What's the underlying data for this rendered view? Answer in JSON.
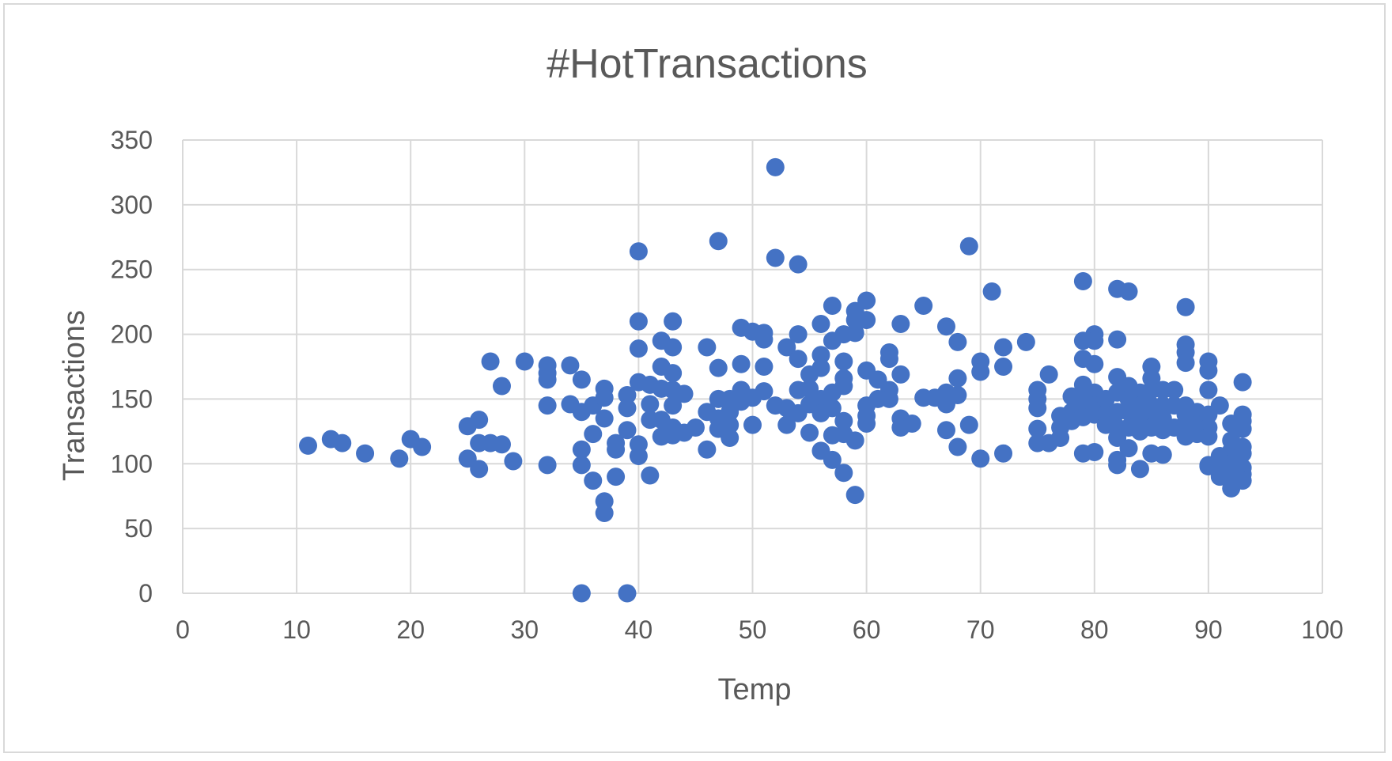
{
  "chart_data": {
    "type": "scatter",
    "title": "#HotTransactions",
    "xlabel": "Temp",
    "ylabel": "Transactions",
    "xlim": [
      0,
      100
    ],
    "ylim": [
      0,
      350
    ],
    "xticks": [
      0,
      10,
      20,
      30,
      40,
      50,
      60,
      70,
      80,
      90,
      100
    ],
    "yticks": [
      0,
      50,
      100,
      150,
      200,
      250,
      300,
      350
    ],
    "grid": true,
    "color": "#4472C4",
    "points": [
      [
        11,
        114
      ],
      [
        13,
        119
      ],
      [
        14,
        116
      ],
      [
        16,
        108
      ],
      [
        19,
        104
      ],
      [
        20,
        119
      ],
      [
        21,
        113
      ],
      [
        25,
        104
      ],
      [
        25,
        129
      ],
      [
        26,
        96
      ],
      [
        26,
        116
      ],
      [
        26,
        134
      ],
      [
        27,
        179
      ],
      [
        27,
        116
      ],
      [
        28,
        115
      ],
      [
        28,
        160
      ],
      [
        29,
        102
      ],
      [
        30,
        179
      ],
      [
        32,
        176
      ],
      [
        32,
        170
      ],
      [
        32,
        165
      ],
      [
        32,
        145
      ],
      [
        32,
        99
      ],
      [
        34,
        176
      ],
      [
        34,
        146
      ],
      [
        35,
        165
      ],
      [
        35,
        140
      ],
      [
        35,
        111
      ],
      [
        35,
        99
      ],
      [
        35,
        0
      ],
      [
        36,
        145
      ],
      [
        36,
        123
      ],
      [
        36,
        87
      ],
      [
        37,
        158
      ],
      [
        37,
        151
      ],
      [
        37,
        135
      ],
      [
        37,
        71
      ],
      [
        37,
        62
      ],
      [
        38,
        116
      ],
      [
        38,
        111
      ],
      [
        38,
        90
      ],
      [
        39,
        153
      ],
      [
        39,
        143
      ],
      [
        39,
        126
      ],
      [
        39,
        0
      ],
      [
        40,
        264
      ],
      [
        40,
        210
      ],
      [
        40,
        189
      ],
      [
        40,
        163
      ],
      [
        40,
        115
      ],
      [
        40,
        106
      ],
      [
        41,
        161
      ],
      [
        41,
        146
      ],
      [
        41,
        134
      ],
      [
        41,
        91
      ],
      [
        42,
        195
      ],
      [
        42,
        175
      ],
      [
        42,
        158
      ],
      [
        42,
        134
      ],
      [
        42,
        121
      ],
      [
        43,
        210
      ],
      [
        43,
        190
      ],
      [
        43,
        170
      ],
      [
        43,
        157
      ],
      [
        43,
        145
      ],
      [
        43,
        128
      ],
      [
        43,
        122
      ],
      [
        44,
        154
      ],
      [
        44,
        124
      ],
      [
        45,
        128
      ],
      [
        46,
        190
      ],
      [
        46,
        140
      ],
      [
        46,
        111
      ],
      [
        47,
        272
      ],
      [
        47,
        174
      ],
      [
        47,
        150
      ],
      [
        47,
        135
      ],
      [
        47,
        127
      ],
      [
        48,
        150
      ],
      [
        48,
        140
      ],
      [
        48,
        130
      ],
      [
        48,
        120
      ],
      [
        49,
        205
      ],
      [
        49,
        177
      ],
      [
        49,
        157
      ],
      [
        49,
        148
      ],
      [
        50,
        202
      ],
      [
        50,
        151
      ],
      [
        50,
        130
      ],
      [
        51,
        201
      ],
      [
        51,
        196
      ],
      [
        51,
        175
      ],
      [
        51,
        156
      ],
      [
        52,
        329
      ],
      [
        52,
        259
      ],
      [
        52,
        145
      ],
      [
        53,
        190
      ],
      [
        53,
        143
      ],
      [
        53,
        130
      ],
      [
        54,
        254
      ],
      [
        54,
        200
      ],
      [
        54,
        181
      ],
      [
        54,
        157
      ],
      [
        54,
        139
      ],
      [
        55,
        169
      ],
      [
        55,
        158
      ],
      [
        55,
        146
      ],
      [
        55,
        124
      ],
      [
        56,
        208
      ],
      [
        56,
        184
      ],
      [
        56,
        174
      ],
      [
        56,
        150
      ],
      [
        56,
        139
      ],
      [
        56,
        110
      ],
      [
        57,
        222
      ],
      [
        57,
        195
      ],
      [
        57,
        155
      ],
      [
        57,
        143
      ],
      [
        57,
        122
      ],
      [
        57,
        103
      ],
      [
        58,
        200
      ],
      [
        58,
        179
      ],
      [
        58,
        166
      ],
      [
        58,
        160
      ],
      [
        58,
        133
      ],
      [
        58,
        123
      ],
      [
        58,
        93
      ],
      [
        59,
        218
      ],
      [
        59,
        211
      ],
      [
        59,
        201
      ],
      [
        59,
        118
      ],
      [
        59,
        76
      ],
      [
        60,
        226
      ],
      [
        60,
        211
      ],
      [
        60,
        172
      ],
      [
        60,
        145
      ],
      [
        60,
        137
      ],
      [
        60,
        131
      ],
      [
        61,
        165
      ],
      [
        61,
        150
      ],
      [
        62,
        186
      ],
      [
        62,
        181
      ],
      [
        62,
        157
      ],
      [
        62,
        150
      ],
      [
        63,
        208
      ],
      [
        63,
        169
      ],
      [
        63,
        135
      ],
      [
        63,
        128
      ],
      [
        64,
        131
      ],
      [
        65,
        222
      ],
      [
        65,
        151
      ],
      [
        66,
        151
      ],
      [
        67,
        206
      ],
      [
        67,
        155
      ],
      [
        67,
        146
      ],
      [
        67,
        126
      ],
      [
        68,
        194
      ],
      [
        68,
        166
      ],
      [
        68,
        153
      ],
      [
        68,
        113
      ],
      [
        69,
        268
      ],
      [
        69,
        130
      ],
      [
        70,
        179
      ],
      [
        70,
        171
      ],
      [
        70,
        104
      ],
      [
        71,
        233
      ],
      [
        72,
        190
      ],
      [
        72,
        175
      ],
      [
        72,
        108
      ],
      [
        74,
        194
      ],
      [
        75,
        157
      ],
      [
        75,
        150
      ],
      [
        75,
        143
      ],
      [
        75,
        127
      ],
      [
        75,
        116
      ],
      [
        76,
        169
      ],
      [
        76,
        116
      ],
      [
        77,
        137
      ],
      [
        77,
        128
      ],
      [
        77,
        120
      ],
      [
        78,
        152
      ],
      [
        78,
        140
      ],
      [
        78,
        133
      ],
      [
        79,
        241
      ],
      [
        79,
        195
      ],
      [
        79,
        181
      ],
      [
        79,
        161
      ],
      [
        79,
        152
      ],
      [
        79,
        142
      ],
      [
        79,
        136
      ],
      [
        79,
        108
      ],
      [
        80,
        200
      ],
      [
        80,
        195
      ],
      [
        80,
        177
      ],
      [
        80,
        155
      ],
      [
        80,
        145
      ],
      [
        80,
        138
      ],
      [
        80,
        109
      ],
      [
        81,
        150
      ],
      [
        81,
        138
      ],
      [
        81,
        130
      ],
      [
        82,
        235
      ],
      [
        82,
        196
      ],
      [
        82,
        167
      ],
      [
        82,
        155
      ],
      [
        82,
        140
      ],
      [
        82,
        128
      ],
      [
        82,
        120
      ],
      [
        82,
        103
      ],
      [
        82,
        99
      ],
      [
        83,
        233
      ],
      [
        83,
        160
      ],
      [
        83,
        150
      ],
      [
        83,
        140
      ],
      [
        83,
        128
      ],
      [
        83,
        112
      ],
      [
        84,
        155
      ],
      [
        84,
        145
      ],
      [
        84,
        135
      ],
      [
        84,
        125
      ],
      [
        84,
        96
      ],
      [
        85,
        175
      ],
      [
        85,
        166
      ],
      [
        85,
        157
      ],
      [
        85,
        145
      ],
      [
        85,
        135
      ],
      [
        85,
        128
      ],
      [
        85,
        108
      ],
      [
        86,
        157
      ],
      [
        86,
        145
      ],
      [
        86,
        135
      ],
      [
        86,
        126
      ],
      [
        86,
        107
      ],
      [
        87,
        157
      ],
      [
        87,
        145
      ],
      [
        87,
        128
      ],
      [
        88,
        221
      ],
      [
        88,
        192
      ],
      [
        88,
        186
      ],
      [
        88,
        178
      ],
      [
        88,
        145
      ],
      [
        88,
        138
      ],
      [
        88,
        128
      ],
      [
        88,
        121
      ],
      [
        89,
        140
      ],
      [
        89,
        130
      ],
      [
        89,
        123
      ],
      [
        90,
        179
      ],
      [
        90,
        172
      ],
      [
        90,
        157
      ],
      [
        90,
        138
      ],
      [
        90,
        128
      ],
      [
        90,
        121
      ],
      [
        90,
        99
      ],
      [
        90,
        98
      ],
      [
        91,
        145
      ],
      [
        91,
        106
      ],
      [
        91,
        100
      ],
      [
        91,
        90
      ],
      [
        92,
        131
      ],
      [
        92,
        118
      ],
      [
        92,
        110
      ],
      [
        92,
        100
      ],
      [
        92,
        88
      ],
      [
        92,
        81
      ],
      [
        93,
        163
      ],
      [
        93,
        138
      ],
      [
        93,
        133
      ],
      [
        93,
        127
      ],
      [
        93,
        113
      ],
      [
        93,
        108
      ],
      [
        93,
        97
      ],
      [
        93,
        92
      ],
      [
        93,
        87
      ]
    ]
  }
}
